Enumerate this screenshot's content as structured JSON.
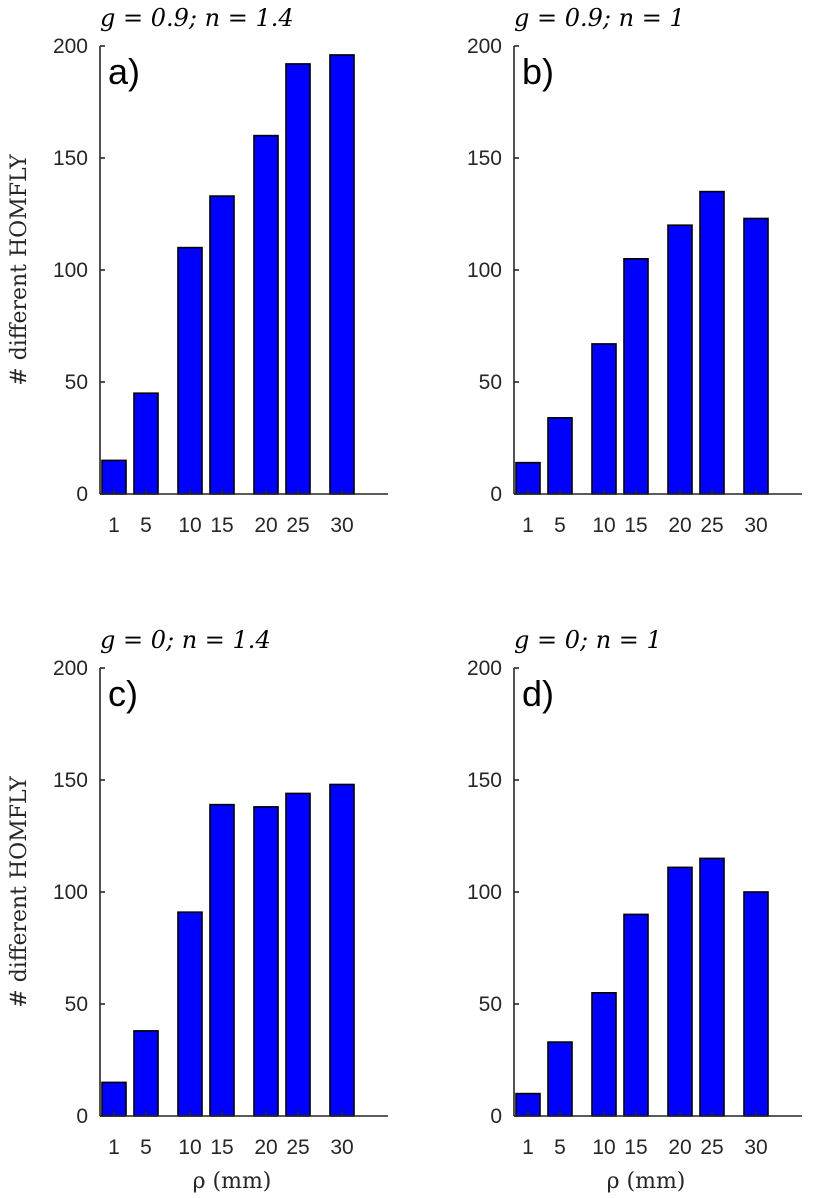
{
  "colors": {
    "bar": "#0000ff",
    "axis": "#262626"
  },
  "chart_data": [
    {
      "type": "bar",
      "panel": "a)",
      "title": "g = 0.9; n = 1.4",
      "categories": [
        "1",
        "5",
        "10",
        "15",
        "20",
        "25",
        "30"
      ],
      "values": [
        15,
        45,
        110,
        133,
        160,
        192,
        196
      ],
      "ylim": [
        0,
        200
      ],
      "yticks": [
        "0",
        "50",
        "100",
        "150",
        "200"
      ],
      "ylabel": "# different HOMFLY",
      "xlabel": ""
    },
    {
      "type": "bar",
      "panel": "b)",
      "title": "g = 0.9; n = 1",
      "categories": [
        "1",
        "5",
        "10",
        "15",
        "20",
        "25",
        "30"
      ],
      "values": [
        14,
        34,
        67,
        105,
        120,
        135,
        123
      ],
      "ylim": [
        0,
        200
      ],
      "yticks": [
        "0",
        "50",
        "100",
        "150",
        "200"
      ],
      "ylabel": "",
      "xlabel": ""
    },
    {
      "type": "bar",
      "panel": "c)",
      "title": "g = 0; n = 1.4",
      "categories": [
        "1",
        "5",
        "10",
        "15",
        "20",
        "25",
        "30"
      ],
      "values": [
        15,
        38,
        91,
        139,
        138,
        144,
        148
      ],
      "ylim": [
        0,
        200
      ],
      "yticks": [
        "0",
        "50",
        "100",
        "150",
        "200"
      ],
      "ylabel": "# different HOMFLY",
      "xlabel": "ρ (mm)"
    },
    {
      "type": "bar",
      "panel": "d)",
      "title": "g = 0; n = 1",
      "categories": [
        "1",
        "5",
        "10",
        "15",
        "20",
        "25",
        "30"
      ],
      "values": [
        10,
        33,
        55,
        90,
        111,
        115,
        100
      ],
      "ylim": [
        0,
        200
      ],
      "yticks": [
        "0",
        "50",
        "100",
        "150",
        "200"
      ],
      "ylabel": "",
      "xlabel": "ρ (mm)"
    }
  ]
}
